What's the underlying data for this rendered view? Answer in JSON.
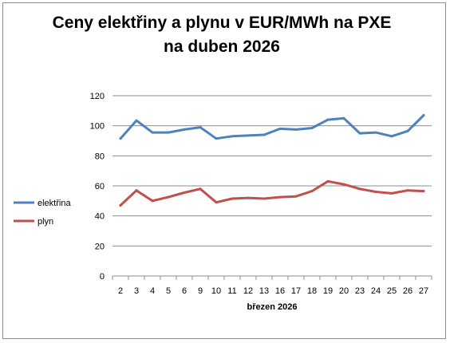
{
  "chart_data": {
    "type": "line",
    "title_line1": "Ceny elektřiny a plynu v EUR/MWh na PXE",
    "title_line2": "na duben 2026",
    "xlabel": "březen 2026",
    "ylabel": "",
    "categories": [
      "2",
      "3",
      "4",
      "5",
      "6",
      "9",
      "10",
      "11",
      "12",
      "13",
      "16",
      "17",
      "18",
      "19",
      "20",
      "23",
      "24",
      "25",
      "26",
      "27"
    ],
    "ylim": [
      0,
      120
    ],
    "yticks": [
      0,
      20,
      40,
      60,
      80,
      100,
      120
    ],
    "grid": true,
    "legend_position": "left",
    "series": [
      {
        "name": "elektřina",
        "color": "#4f81bd",
        "values": [
          91.5,
          103.5,
          95.5,
          95.5,
          97.5,
          99,
          91.5,
          93,
          93.5,
          94,
          98,
          97.5,
          98.5,
          104,
          105,
          95,
          95.5,
          93,
          96.5,
          107
        ]
      },
      {
        "name": "plyn",
        "color": "#c0504d",
        "values": [
          47,
          57,
          50,
          52.5,
          55.5,
          58,
          49,
          51.5,
          52,
          51.5,
          52.5,
          53,
          56.5,
          63,
          61,
          58,
          56,
          55,
          57,
          56.5
        ]
      }
    ]
  }
}
